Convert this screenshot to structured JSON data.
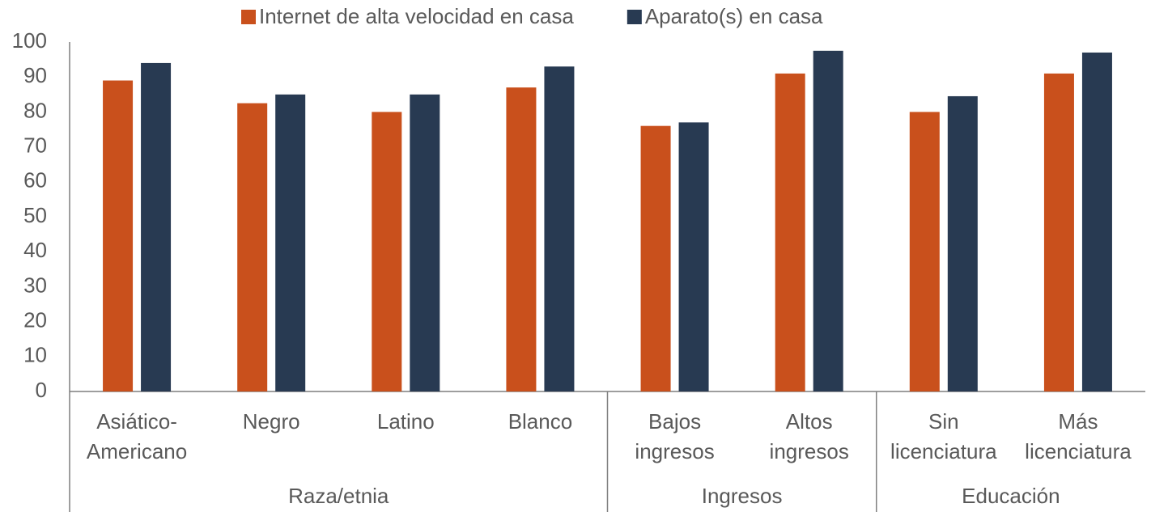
{
  "chart_data": {
    "type": "bar",
    "groups": [
      {
        "name": "Raza/etnia",
        "categories": [
          [
            "Asiático-",
            "Americano"
          ],
          [
            "Negro"
          ],
          [
            "Latino"
          ],
          [
            "Blanco"
          ]
        ]
      },
      {
        "name": "Ingresos",
        "categories": [
          [
            "Bajos",
            "ingresos"
          ],
          [
            "Altos",
            "ingresos"
          ]
        ]
      },
      {
        "name": "Educación",
        "categories": [
          [
            "Sin",
            "licenciatura"
          ],
          [
            "Más",
            "licenciatura"
          ]
        ]
      }
    ],
    "series": [
      {
        "name": "Internet de alta velocidad en casa",
        "color": "#c9501c",
        "values": [
          89,
          82.5,
          80,
          87,
          76,
          91,
          80,
          91
        ]
      },
      {
        "name": "Aparato(s) en casa",
        "color": "#283a52",
        "values": [
          94,
          85,
          85,
          93,
          77,
          97.5,
          84.5,
          97
        ]
      }
    ],
    "ylim": [
      0,
      100
    ],
    "yticks": [
      0,
      10,
      20,
      30,
      40,
      50,
      60,
      70,
      80,
      90,
      100
    ],
    "legend": "top",
    "grid": false
  }
}
